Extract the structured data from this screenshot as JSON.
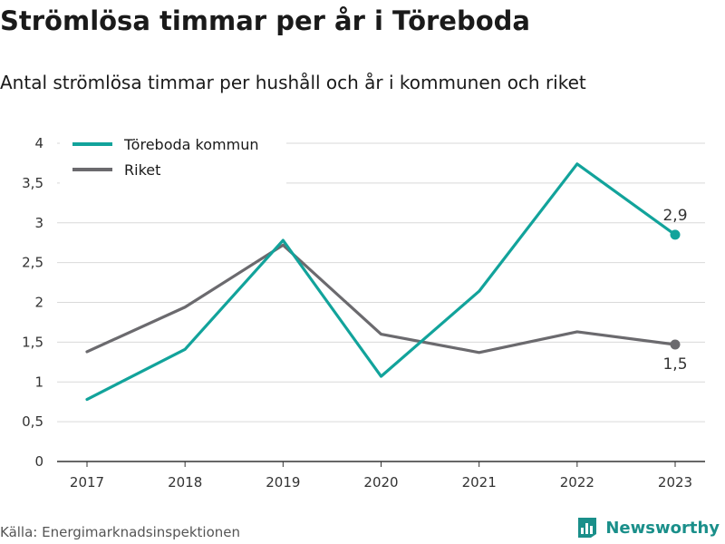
{
  "header": {
    "title": "Strömlösa timmar per år i Töreboda",
    "subtitle": "Antal strömlösa timmar per hushåll och år i kommunen och riket"
  },
  "footer": {
    "source": "Källa: Energimarknadsinspektionen",
    "brand": "Newsworthy",
    "brand_icon": "bar-chart-logo-icon"
  },
  "chart_data": {
    "type": "line",
    "title": "Strömlösa timmar per år i Töreboda",
    "subtitle": "Antal strömlösa timmar per hushåll och år i kommunen och riket",
    "xlabel": "",
    "ylabel": "",
    "x": [
      "2017",
      "2018",
      "2019",
      "2020",
      "2021",
      "2022",
      "2023"
    ],
    "ylim": [
      0,
      4
    ],
    "yticks": [
      0,
      0.5,
      1,
      1.5,
      2,
      2.5,
      3,
      3.5,
      4
    ],
    "ytick_labels": [
      "0",
      "0,5",
      "1",
      "1,5",
      "2",
      "2,5",
      "3",
      "3,5",
      "4"
    ],
    "grid": "horizontal",
    "legend_position": "top-left",
    "series": [
      {
        "name": "Töreboda kommun",
        "color": "#12a39b",
        "values": [
          0.78,
          1.41,
          2.78,
          1.07,
          2.14,
          3.74,
          2.85
        ],
        "end_label": "2,9",
        "end_label_position": "above"
      },
      {
        "name": "Riket",
        "color": "#6b6a6e",
        "values": [
          1.38,
          1.94,
          2.72,
          1.6,
          1.37,
          1.63,
          1.47
        ],
        "end_label": "1,5",
        "end_label_position": "below"
      }
    ]
  }
}
